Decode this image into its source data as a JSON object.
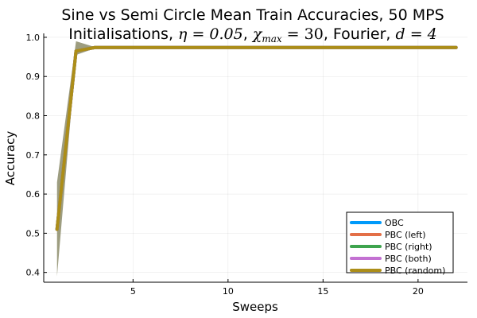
{
  "chart_data": {
    "type": "line",
    "title_line1": "Sine vs Semi Circle Mean Train Accuracies, 50 MPS",
    "title_line2_prefix": "Initialisations, ",
    "title_eta": "η = 0.05",
    "title_chi": "χ",
    "title_chi_sub": "max",
    "title_chi_val": " = 30",
    "title_mid": ", Fourier, ",
    "title_d": "d = 4",
    "xlabel": "Sweeps",
    "ylabel": "Accuracy",
    "xlim": [
      0.3,
      22.6
    ],
    "ylim": [
      0.375,
      1.01
    ],
    "xticks": [
      5,
      10,
      15,
      20
    ],
    "yticks": [
      0.4,
      0.5,
      0.6,
      0.7,
      0.8,
      0.9,
      1.0
    ],
    "ytick_labels": [
      "0.4",
      "0.5",
      "0.6",
      "0.7",
      "0.8",
      "0.9",
      "1.0"
    ],
    "grid": true,
    "legend_position": "bottom-right",
    "x": [
      1,
      2,
      3,
      4,
      5,
      6,
      7,
      8,
      9,
      10,
      11,
      12,
      13,
      14,
      15,
      16,
      17,
      18,
      19,
      20,
      21,
      22
    ],
    "band": {
      "upper": [
        0.63,
        0.99,
        0.975,
        0.975,
        0.975,
        0.975,
        0.975,
        0.975,
        0.975,
        0.975,
        0.975,
        0.975,
        0.975,
        0.975,
        0.975,
        0.975,
        0.975,
        0.975,
        0.975,
        0.975,
        0.975,
        0.975
      ],
      "lower": [
        0.39,
        0.955,
        0.972,
        0.972,
        0.972,
        0.972,
        0.972,
        0.972,
        0.972,
        0.972,
        0.972,
        0.972,
        0.972,
        0.972,
        0.972,
        0.972,
        0.972,
        0.972,
        0.972,
        0.972,
        0.972,
        0.972
      ],
      "color": "#8c8c6a"
    },
    "series": [
      {
        "name": "OBC",
        "color": "#009AFA",
        "values": [
          0.51,
          0.965,
          0.974,
          0.974,
          0.974,
          0.974,
          0.974,
          0.974,
          0.974,
          0.974,
          0.974,
          0.974,
          0.974,
          0.974,
          0.974,
          0.974,
          0.974,
          0.974,
          0.974,
          0.974,
          0.974,
          0.974
        ]
      },
      {
        "name": "PBC (left)",
        "color": "#E36F47",
        "values": [
          0.51,
          0.965,
          0.974,
          0.974,
          0.974,
          0.974,
          0.974,
          0.974,
          0.974,
          0.974,
          0.974,
          0.974,
          0.974,
          0.974,
          0.974,
          0.974,
          0.974,
          0.974,
          0.974,
          0.974,
          0.974,
          0.974
        ]
      },
      {
        "name": "PBC (right)",
        "color": "#3EA44E",
        "values": [
          0.51,
          0.965,
          0.974,
          0.974,
          0.974,
          0.974,
          0.974,
          0.974,
          0.974,
          0.974,
          0.974,
          0.974,
          0.974,
          0.974,
          0.974,
          0.974,
          0.974,
          0.974,
          0.974,
          0.974,
          0.974,
          0.974
        ]
      },
      {
        "name": "PBC (both)",
        "color": "#C371D2",
        "values": [
          0.51,
          0.965,
          0.974,
          0.974,
          0.974,
          0.974,
          0.974,
          0.974,
          0.974,
          0.974,
          0.974,
          0.974,
          0.974,
          0.974,
          0.974,
          0.974,
          0.974,
          0.974,
          0.974,
          0.974,
          0.974,
          0.974
        ]
      },
      {
        "name": "PBC (random)",
        "color": "#AC8E18",
        "values": [
          0.51,
          0.965,
          0.974,
          0.974,
          0.974,
          0.974,
          0.974,
          0.974,
          0.974,
          0.974,
          0.974,
          0.974,
          0.974,
          0.974,
          0.974,
          0.974,
          0.974,
          0.974,
          0.974,
          0.974,
          0.974,
          0.974
        ]
      }
    ]
  }
}
